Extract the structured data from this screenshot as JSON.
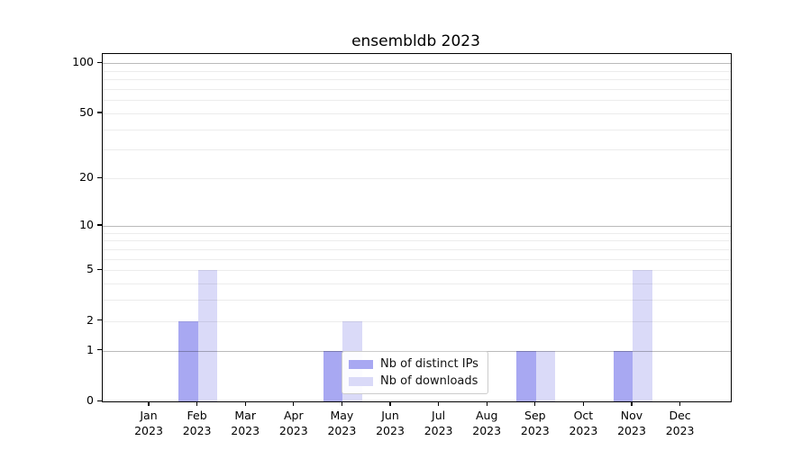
{
  "title": "ensembldb 2023",
  "chart_data": {
    "type": "bar",
    "title": "ensembldb 2023",
    "categories": [
      "Jan",
      "Feb",
      "Mar",
      "Apr",
      "May",
      "Jun",
      "Jul",
      "Aug",
      "Sep",
      "Oct",
      "Nov",
      "Dec"
    ],
    "year_label": "2023",
    "series": [
      {
        "name": "Nb of distinct IPs",
        "color": "#a8a8f2",
        "values": [
          0,
          2,
          0,
          0,
          1,
          0,
          0,
          0,
          1,
          0,
          1,
          0
        ]
      },
      {
        "name": "Nb of downloads",
        "color": "#dadaf8",
        "values": [
          0,
          5,
          0,
          0,
          2,
          0,
          0,
          0,
          1,
          0,
          5,
          0
        ]
      }
    ],
    "xlabel": "",
    "ylabel": "",
    "y_axis": {
      "scale": "log10(1+y)",
      "ticks": [
        0,
        1,
        2,
        5,
        10,
        20,
        50,
        100
      ],
      "major_gridlines": [
        1,
        10,
        100
      ],
      "minor_gridlines": [
        2,
        3,
        4,
        5,
        6,
        7,
        8,
        9,
        20,
        30,
        40,
        50,
        60,
        70,
        80,
        90
      ],
      "ylim": [
        0,
        100
      ],
      "grid": true
    },
    "legend": {
      "position": "lower-center-inside"
    }
  },
  "colors": {
    "grid_minor": "#ececec",
    "grid_major": "#bcbcbc",
    "axis": "#000000",
    "background": "#ffffff"
  }
}
